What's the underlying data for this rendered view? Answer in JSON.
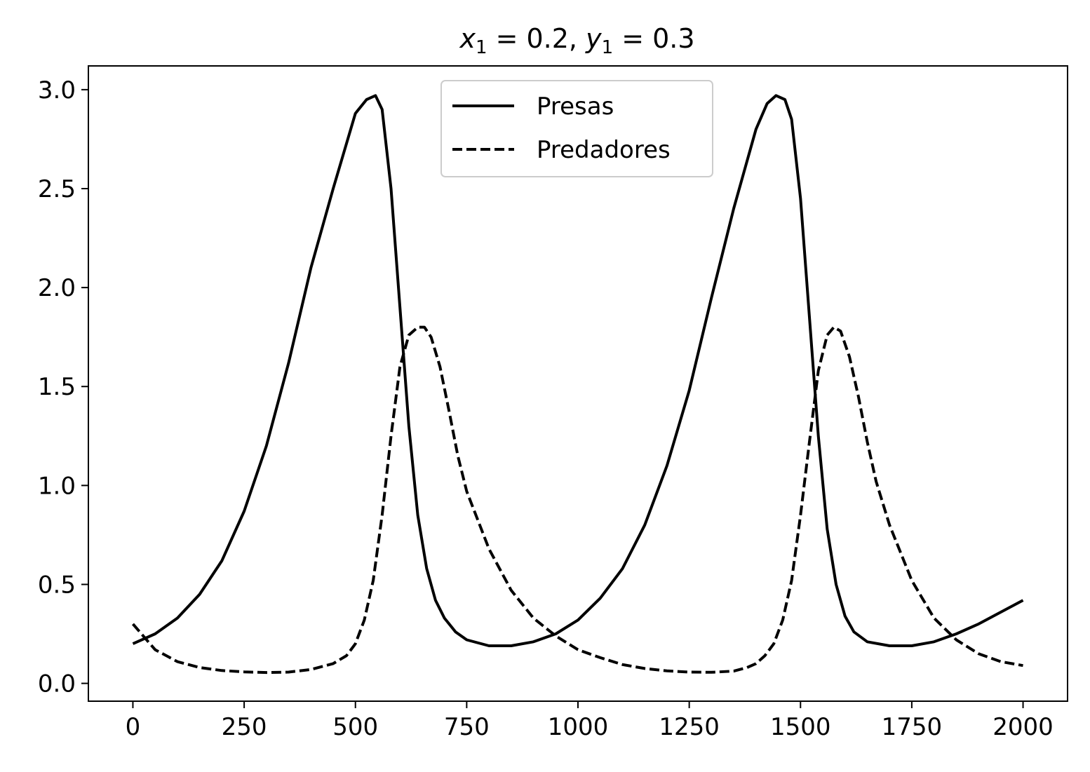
{
  "chart_data": {
    "type": "line",
    "title": {
      "var1": "x",
      "sub1": "1",
      "eq1": " = 0.2, ",
      "var2": "y",
      "sub2": "1",
      "eq2": " = 0.3"
    },
    "xlabel": "",
    "ylabel": "",
    "xlim": [
      -100,
      2100
    ],
    "ylim": [
      -0.09,
      3.12
    ],
    "x_ticks": [
      0,
      250,
      500,
      750,
      1000,
      1250,
      1500,
      1750,
      2000
    ],
    "x_tick_labels": [
      "0",
      "250",
      "500",
      "750",
      "1000",
      "1250",
      "1500",
      "1750",
      "2000"
    ],
    "y_ticks": [
      0.0,
      0.5,
      1.0,
      1.5,
      2.0,
      2.5,
      3.0
    ],
    "y_tick_labels": [
      "0.0",
      "0.5",
      "1.0",
      "1.5",
      "2.0",
      "2.5",
      "3.0"
    ],
    "grid": false,
    "legend_position": "upper center",
    "series": [
      {
        "name": "Presas",
        "style": "solid",
        "color": "#000000",
        "x": [
          0,
          50,
          100,
          150,
          200,
          250,
          300,
          350,
          400,
          450,
          500,
          525,
          545,
          560,
          580,
          600,
          620,
          640,
          660,
          680,
          700,
          725,
          750,
          800,
          850,
          900,
          950,
          1000,
          1050,
          1100,
          1150,
          1200,
          1250,
          1300,
          1350,
          1400,
          1425,
          1445,
          1465,
          1480,
          1500,
          1520,
          1540,
          1560,
          1580,
          1600,
          1620,
          1650,
          1700,
          1750,
          1800,
          1850,
          1900,
          1950,
          2000
        ],
        "y": [
          0.2,
          0.25,
          0.33,
          0.45,
          0.62,
          0.87,
          1.2,
          1.62,
          2.1,
          2.5,
          2.88,
          2.95,
          2.97,
          2.9,
          2.5,
          1.9,
          1.3,
          0.85,
          0.58,
          0.42,
          0.33,
          0.26,
          0.22,
          0.19,
          0.19,
          0.21,
          0.25,
          0.32,
          0.43,
          0.58,
          0.8,
          1.1,
          1.48,
          1.95,
          2.4,
          2.8,
          2.93,
          2.97,
          2.95,
          2.85,
          2.45,
          1.85,
          1.25,
          0.78,
          0.5,
          0.34,
          0.26,
          0.21,
          0.19,
          0.19,
          0.21,
          0.25,
          0.3,
          0.36,
          0.42
        ]
      },
      {
        "name": "Predadores",
        "style": "dashed",
        "color": "#000000",
        "x": [
          0,
          50,
          100,
          150,
          200,
          250,
          300,
          350,
          400,
          450,
          480,
          500,
          520,
          540,
          560,
          580,
          600,
          620,
          640,
          655,
          670,
          690,
          710,
          730,
          750,
          800,
          850,
          900,
          950,
          1000,
          1050,
          1100,
          1150,
          1200,
          1250,
          1300,
          1350,
          1380,
          1400,
          1420,
          1440,
          1460,
          1480,
          1500,
          1520,
          1540,
          1560,
          1575,
          1590,
          1610,
          1630,
          1650,
          1670,
          1700,
          1750,
          1800,
          1850,
          1900,
          1950,
          2000
        ],
        "y": [
          0.3,
          0.17,
          0.11,
          0.08,
          0.065,
          0.058,
          0.055,
          0.057,
          0.07,
          0.1,
          0.14,
          0.2,
          0.32,
          0.52,
          0.85,
          1.25,
          1.6,
          1.76,
          1.8,
          1.8,
          1.75,
          1.6,
          1.38,
          1.15,
          0.97,
          0.68,
          0.47,
          0.33,
          0.24,
          0.17,
          0.13,
          0.095,
          0.075,
          0.063,
          0.057,
          0.056,
          0.062,
          0.08,
          0.1,
          0.14,
          0.2,
          0.32,
          0.52,
          0.85,
          1.22,
          1.58,
          1.76,
          1.8,
          1.78,
          1.65,
          1.45,
          1.22,
          1.02,
          0.8,
          0.52,
          0.33,
          0.22,
          0.15,
          0.11,
          0.09
        ]
      }
    ]
  }
}
